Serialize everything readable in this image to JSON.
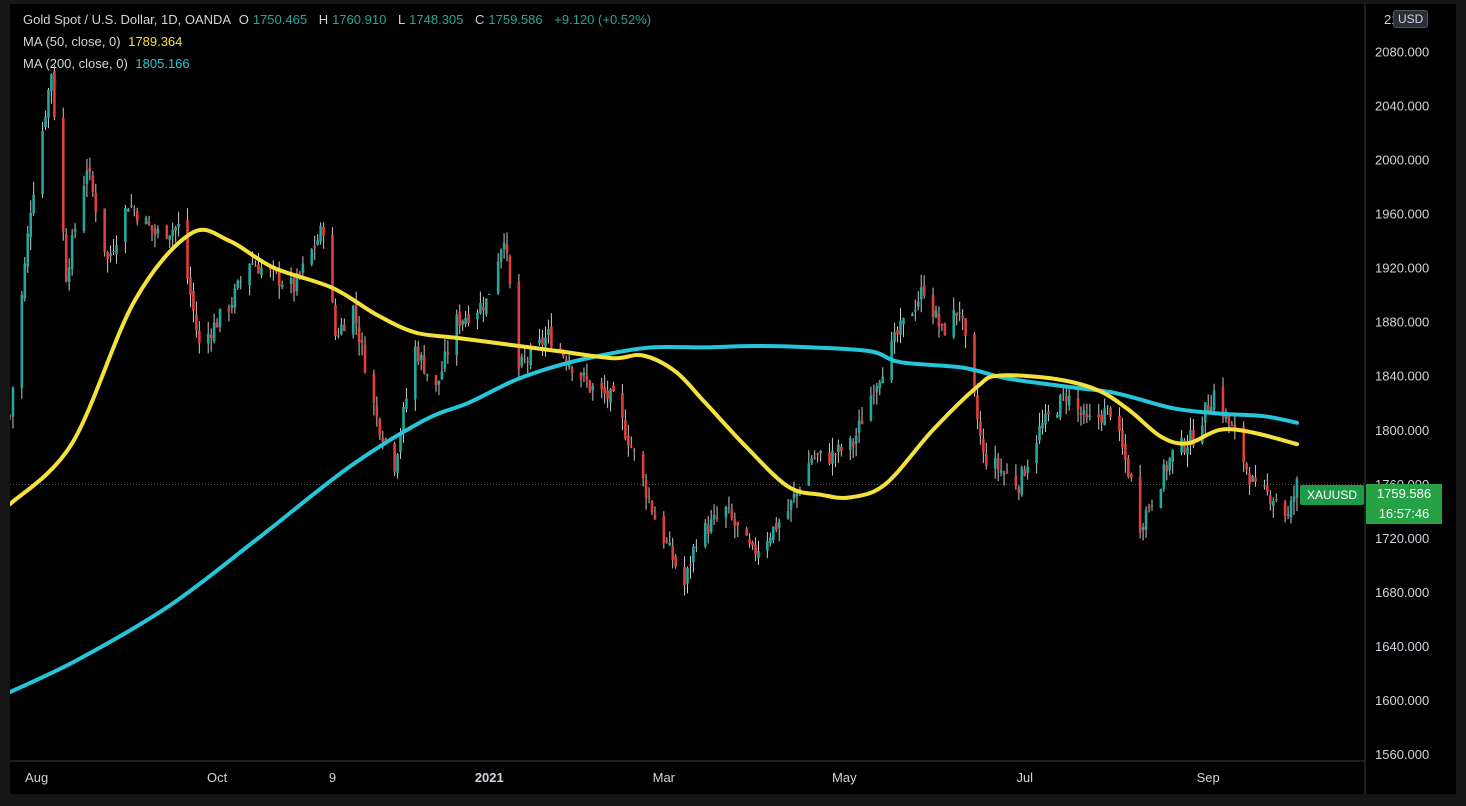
{
  "header": {
    "symbol_title": "Gold Spot / U.S. Dollar, 1D, OANDA",
    "o_label": "O",
    "o_value": "1750.465",
    "h_label": "H",
    "h_value": "1760.910",
    "l_label": "L",
    "l_value": "1748.305",
    "c_label": "C",
    "c_value": "1759.586",
    "change": "+9.120 (+0.52%)"
  },
  "indicators": {
    "ma50_label": "MA (50, close, 0)",
    "ma50_value": "1789.364",
    "ma200_label": "MA (200, close, 0)",
    "ma200_value": "1805.166"
  },
  "price_axis": {
    "currency": "USD",
    "top_label": "21"
  },
  "last_price": {
    "symbol": "XAUUSD",
    "price": "1759.586",
    "countdown": "16:57:46"
  },
  "colors": {
    "up": "#26a69a",
    "down": "#e0403a",
    "wick": "#c8c8c8",
    "ma50": "#f5e13c",
    "ma200": "#26c6da",
    "background": "#000000"
  },
  "chart_data": {
    "type": "candlestick",
    "title": "Gold Spot / U.S. Dollar, 1D, OANDA",
    "y_ticks": [
      1560,
      1600,
      1640,
      1680,
      1720,
      1760,
      1800,
      1840,
      1880,
      1920,
      1960,
      2000,
      2040,
      2080
    ],
    "y_tick_labels": [
      "1560.000",
      "1600.000",
      "1640.000",
      "1680.000",
      "1720.000",
      "1760.000",
      "1800.000",
      "1840.000",
      "1880.000",
      "1920.000",
      "1960.000",
      "2000.000",
      "2040.000",
      "2080.000"
    ],
    "ylim": [
      1555,
      2115
    ],
    "x_labels": [
      "Aug",
      "Oct",
      "9",
      "2021",
      "Mar",
      "May",
      "Jul",
      "Sep"
    ],
    "x_label_dates": [
      "2020-08-01",
      "2020-10-01",
      "2020-11-09",
      "2021-01-01",
      "2021-03-01",
      "2021-05-01",
      "2021-07-01",
      "2021-09-01"
    ],
    "x_label_bold": [
      false,
      false,
      false,
      true,
      false,
      false,
      false,
      false
    ],
    "xlim": [
      "2020-07-23",
      "2021-10-24"
    ],
    "price_keypoints": [
      [
        "2020-07-23",
        1810
      ],
      [
        "2020-07-30",
        1965
      ],
      [
        "2020-08-06",
        2065
      ],
      [
        "2020-08-11",
        1915
      ],
      [
        "2020-08-18",
        1995
      ],
      [
        "2020-08-25",
        1925
      ],
      [
        "2020-09-01",
        1968
      ],
      [
        "2020-09-10",
        1945
      ],
      [
        "2020-09-18",
        1950
      ],
      [
        "2020-09-25",
        1862
      ],
      [
        "2020-10-06",
        1895
      ],
      [
        "2020-10-12",
        1925
      ],
      [
        "2020-10-27",
        1905
      ],
      [
        "2020-11-06",
        1950
      ],
      [
        "2020-11-10",
        1870
      ],
      [
        "2020-11-16",
        1890
      ],
      [
        "2020-11-24",
        1808
      ],
      [
        "2020-11-30",
        1775
      ],
      [
        "2020-12-07",
        1860
      ],
      [
        "2020-12-14",
        1830
      ],
      [
        "2020-12-21",
        1880
      ],
      [
        "2020-12-31",
        1895
      ],
      [
        "2021-01-06",
        1945
      ],
      [
        "2021-01-11",
        1845
      ],
      [
        "2021-01-21",
        1870
      ],
      [
        "2021-01-29",
        1848
      ],
      [
        "2021-02-04",
        1832
      ],
      [
        "2021-02-12",
        1822
      ],
      [
        "2021-02-19",
        1782
      ],
      [
        "2021-02-26",
        1735
      ],
      [
        "2021-03-08",
        1685
      ],
      [
        "2021-03-12",
        1720
      ],
      [
        "2021-03-22",
        1740
      ],
      [
        "2021-03-31",
        1708
      ],
      [
        "2021-04-12",
        1740
      ],
      [
        "2021-04-20",
        1780
      ],
      [
        "2021-04-26",
        1780
      ],
      [
        "2021-05-04",
        1790
      ],
      [
        "2021-05-11",
        1832
      ],
      [
        "2021-05-19",
        1870
      ],
      [
        "2021-05-28",
        1905
      ],
      [
        "2021-06-03",
        1872
      ],
      [
        "2021-06-09",
        1890
      ],
      [
        "2021-06-17",
        1780
      ],
      [
        "2021-06-29",
        1760
      ],
      [
        "2021-07-06",
        1800
      ],
      [
        "2021-07-15",
        1826
      ],
      [
        "2021-07-22",
        1805
      ],
      [
        "2021-07-30",
        1815
      ],
      [
        "2021-08-06",
        1762
      ],
      [
        "2021-08-09",
        1730
      ],
      [
        "2021-08-20",
        1782
      ],
      [
        "2021-08-27",
        1795
      ],
      [
        "2021-09-03",
        1828
      ],
      [
        "2021-09-10",
        1795
      ],
      [
        "2021-09-17",
        1755
      ],
      [
        "2021-09-24",
        1750
      ],
      [
        "2021-09-28",
        1735
      ],
      [
        "2021-10-01",
        1759.586
      ]
    ],
    "ma50_points": [
      [
        "2020-07-23",
        1745
      ],
      [
        "2020-08-13",
        1790
      ],
      [
        "2020-09-03",
        1895
      ],
      [
        "2020-09-22",
        1945
      ],
      [
        "2020-10-05",
        1940
      ],
      [
        "2020-10-20",
        1920
      ],
      [
        "2020-11-09",
        1905
      ],
      [
        "2020-11-24",
        1885
      ],
      [
        "2020-12-07",
        1872
      ],
      [
        "2020-12-21",
        1868
      ],
      [
        "2021-01-11",
        1862
      ],
      [
        "2021-01-25",
        1858
      ],
      [
        "2021-02-12",
        1853
      ],
      [
        "2021-02-22",
        1855
      ],
      [
        "2021-03-05",
        1843
      ],
      [
        "2021-03-15",
        1820
      ],
      [
        "2021-03-29",
        1787
      ],
      [
        "2021-04-12",
        1758
      ],
      [
        "2021-04-23",
        1752
      ],
      [
        "2021-05-03",
        1750
      ],
      [
        "2021-05-15",
        1760
      ],
      [
        "2021-05-31",
        1800
      ],
      [
        "2021-06-15",
        1832
      ],
      [
        "2021-06-22",
        1840
      ],
      [
        "2021-07-10",
        1838
      ],
      [
        "2021-07-25",
        1830
      ],
      [
        "2021-08-05",
        1815
      ],
      [
        "2021-08-16",
        1795
      ],
      [
        "2021-08-25",
        1790
      ],
      [
        "2021-09-05",
        1800
      ],
      [
        "2021-09-16",
        1798
      ],
      [
        "2021-10-01",
        1789.364
      ]
    ],
    "ma200_points": [
      [
        "2020-07-23",
        1606
      ],
      [
        "2020-08-15",
        1630
      ],
      [
        "2020-09-15",
        1670
      ],
      [
        "2020-10-15",
        1720
      ],
      [
        "2020-11-15",
        1773
      ],
      [
        "2020-12-10",
        1807
      ],
      [
        "2020-12-25",
        1820
      ],
      [
        "2021-01-10",
        1837
      ],
      [
        "2021-01-25",
        1848
      ],
      [
        "2021-02-10",
        1856
      ],
      [
        "2021-02-25",
        1861
      ],
      [
        "2021-03-15",
        1861
      ],
      [
        "2021-04-01",
        1862
      ],
      [
        "2021-04-20",
        1861
      ],
      [
        "2021-05-10",
        1858
      ],
      [
        "2021-05-20",
        1850
      ],
      [
        "2021-06-10",
        1846
      ],
      [
        "2021-06-25",
        1838
      ],
      [
        "2021-07-15",
        1832
      ],
      [
        "2021-08-01",
        1827
      ],
      [
        "2021-08-20",
        1816
      ],
      [
        "2021-09-05",
        1812
      ],
      [
        "2021-09-20",
        1810
      ],
      [
        "2021-10-01",
        1805.166
      ]
    ],
    "last_price": 1759.586,
    "grid": false,
    "legend_position": "top-left"
  }
}
